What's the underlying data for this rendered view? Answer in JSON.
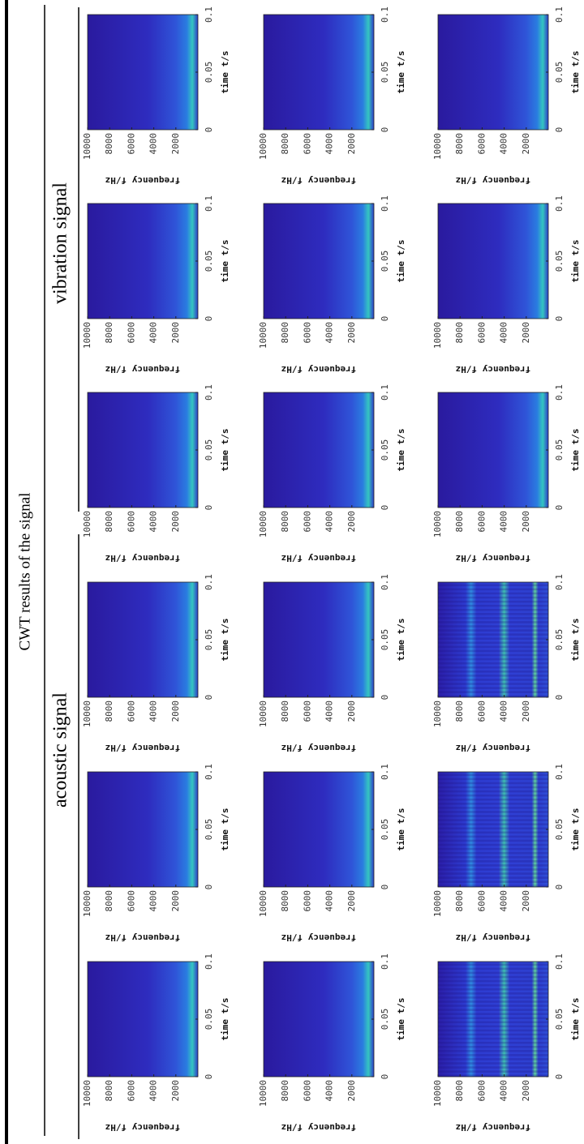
{
  "figure": {
    "title": "CWT results of the signal",
    "groups": [
      "acoustic signal",
      "vibration signal"
    ],
    "axes": {
      "xlabel": "time t/s",
      "ylabel": "frequency f/Hz",
      "xlim": [
        0,
        0.1
      ],
      "xticks": [
        0,
        0.05,
        0.1
      ],
      "ylim": [
        0,
        10000
      ],
      "yticks": [
        2000,
        4000,
        6000,
        8000,
        10000
      ]
    }
  }
}
